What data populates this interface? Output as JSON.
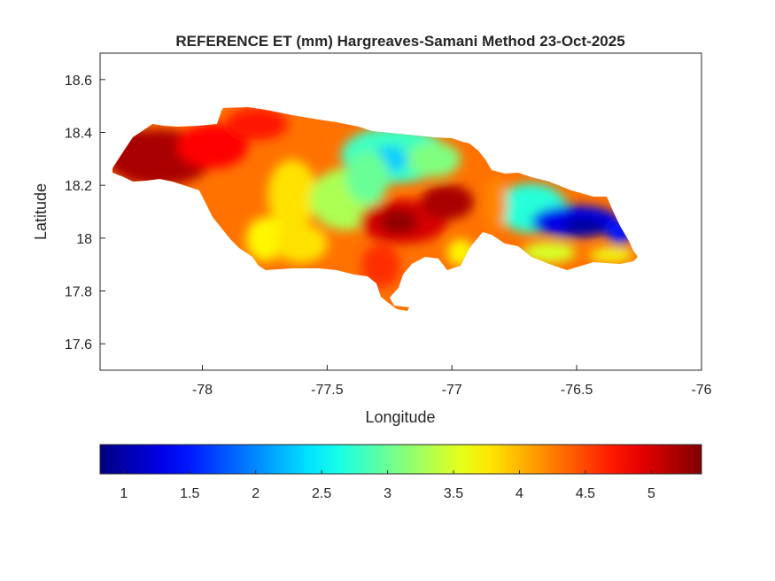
{
  "chart_data": {
    "type": "heatmap",
    "subtype": "filled contour map",
    "title": "REFERENCE ET (mm) Hargreaves-Samani Method  23-Oct-2025",
    "xlabel": "Longitude",
    "ylabel": "Latitude",
    "xlim": [
      -78.41,
      -76
    ],
    "ylim": [
      17.5,
      18.7
    ],
    "xticks": [
      -78,
      -77.5,
      -77,
      -76.5,
      -76
    ],
    "xtick_labels": [
      "-78",
      "-77.5",
      "-77",
      "-76.5",
      "-76"
    ],
    "yticks": [
      17.6,
      17.8,
      18,
      18.2,
      18.4,
      18.6
    ],
    "ytick_labels": [
      "17.6",
      "17.8",
      "18",
      "18.2",
      "18.4",
      "18.6"
    ],
    "grid": false,
    "colormap": "jet",
    "colorbar": {
      "location": "bottom",
      "clim": [
        0.82,
        5.38
      ],
      "ticks": [
        1,
        1.5,
        2,
        2.5,
        3,
        3.5,
        4,
        4.5,
        5
      ],
      "tick_labels": [
        "1",
        "1.5",
        "2",
        "2.5",
        "3",
        "3.5",
        "4",
        "4.5",
        "5"
      ]
    },
    "background_value": 4.3
  }
}
